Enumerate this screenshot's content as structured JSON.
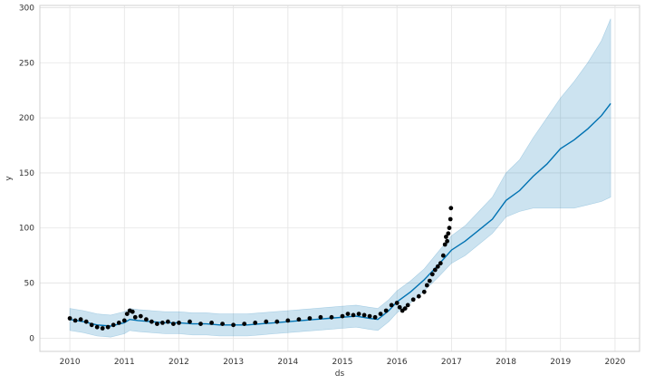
{
  "chart_data": {
    "type": "line",
    "title": "",
    "xlabel": "ds",
    "ylabel": "y",
    "xlim": [
      2009.45,
      2020.45
    ],
    "ylim": [
      -12,
      302
    ],
    "grid": true,
    "legend": "none",
    "x_ticks": [
      2010,
      2011,
      2012,
      2013,
      2014,
      2015,
      2016,
      2017,
      2018,
      2019,
      2020
    ],
    "x_tick_labels": [
      "2010",
      "2011",
      "2012",
      "2013",
      "2014",
      "2015",
      "2016",
      "2017",
      "2018",
      "2019",
      "2020"
    ],
    "y_ticks": [
      0,
      50,
      100,
      150,
      200,
      250,
      300
    ],
    "y_tick_labels": [
      "0",
      "50",
      "100",
      "150",
      "200",
      "250",
      "300"
    ],
    "colors": {
      "forecast_line": "#0072b2",
      "interval_fill": "#0072b2",
      "observed_points": "#000000",
      "grid": "#e3e3e3",
      "frame": "#d0d0d0"
    },
    "series": [
      {
        "kind": "forecast",
        "x": [
          2010.0,
          2010.25,
          2010.5,
          2010.75,
          2011.0,
          2011.1,
          2011.25,
          2011.5,
          2011.75,
          2012.0,
          2012.25,
          2012.5,
          2012.75,
          2013.0,
          2013.25,
          2013.5,
          2013.75,
          2014.0,
          2014.25,
          2014.5,
          2014.75,
          2015.0,
          2015.25,
          2015.5,
          2015.65,
          2015.85,
          2016.0,
          2016.25,
          2016.5,
          2016.75,
          2017.0,
          2017.25,
          2017.5,
          2017.75,
          2018.0,
          2018.25,
          2018.5,
          2018.75,
          2019.0,
          2019.25,
          2019.5,
          2019.75,
          2019.92
        ],
        "yhat": [
          17,
          15,
          12,
          11,
          14,
          17,
          16,
          15,
          14,
          14,
          13,
          13,
          12,
          12,
          12,
          13,
          14,
          15,
          16,
          17,
          18,
          19,
          20,
          18,
          17,
          25,
          33,
          42,
          53,
          66,
          80,
          88,
          98,
          108,
          125,
          134,
          147,
          158,
          172,
          180,
          190,
          202,
          213
        ],
        "yhat_lower": [
          7,
          5,
          2,
          1,
          4,
          7,
          6,
          5,
          4,
          4,
          3,
          3,
          2,
          2,
          2,
          3,
          4,
          5,
          6,
          7,
          8,
          9,
          10,
          8,
          7,
          15,
          23,
          32,
          43,
          55,
          68,
          75,
          85,
          95,
          110,
          115,
          118,
          118,
          118,
          118,
          121,
          124,
          128
        ],
        "yhat_upper": [
          27,
          25,
          22,
          21,
          24,
          27,
          26,
          25,
          24,
          24,
          23,
          23,
          22,
          22,
          22,
          23,
          24,
          25,
          26,
          27,
          28,
          29,
          30,
          28,
          27,
          35,
          43,
          52,
          63,
          78,
          93,
          102,
          115,
          128,
          150,
          162,
          182,
          200,
          218,
          233,
          250,
          270,
          290
        ]
      },
      {
        "kind": "observed",
        "x": [
          2010.0,
          2010.1,
          2010.2,
          2010.3,
          2010.4,
          2010.5,
          2010.6,
          2010.7,
          2010.8,
          2010.9,
          2011.0,
          2011.05,
          2011.1,
          2011.15,
          2011.2,
          2011.3,
          2011.4,
          2011.5,
          2011.6,
          2011.7,
          2011.8,
          2011.9,
          2012.0,
          2012.2,
          2012.4,
          2012.6,
          2012.8,
          2013.0,
          2013.2,
          2013.4,
          2013.6,
          2013.8,
          2014.0,
          2014.2,
          2014.4,
          2014.6,
          2014.8,
          2015.0,
          2015.1,
          2015.2,
          2015.3,
          2015.4,
          2015.5,
          2015.6,
          2015.7,
          2015.8,
          2015.9,
          2016.0,
          2016.05,
          2016.1,
          2016.15,
          2016.2,
          2016.3,
          2016.4,
          2016.5,
          2016.55,
          2016.6,
          2016.65,
          2016.7,
          2016.75,
          2016.8,
          2016.85,
          2016.88,
          2016.9,
          2016.92,
          2016.94,
          2016.96,
          2016.98,
          2016.99
        ],
        "y": [
          18,
          16,
          17,
          15,
          12,
          10,
          9,
          10,
          12,
          14,
          16,
          22,
          25,
          24,
          19,
          20,
          17,
          15,
          13,
          14,
          15,
          13,
          14,
          15,
          13,
          14,
          13,
          12,
          13,
          14,
          15,
          15,
          16,
          17,
          18,
          19,
          19,
          20,
          22,
          21,
          22,
          21,
          20,
          19,
          22,
          25,
          30,
          32,
          28,
          25,
          27,
          30,
          35,
          38,
          42,
          48,
          52,
          58,
          62,
          65,
          68,
          75,
          85,
          92,
          88,
          95,
          100,
          108,
          118
        ]
      }
    ]
  }
}
